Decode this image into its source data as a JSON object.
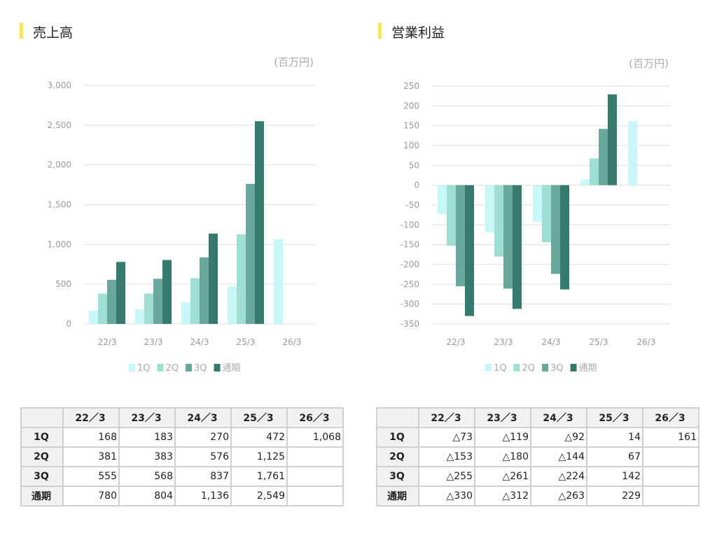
{
  "chart_data": [
    {
      "type": "bar",
      "title": "売上高",
      "unit": "(百万円)",
      "categories": [
        "22/3",
        "23/3",
        "24/3",
        "25/3",
        "26/3"
      ],
      "series": [
        {
          "name": "1Q",
          "color": "#c8f7fa",
          "values": [
            168,
            183,
            270,
            472,
            1068
          ]
        },
        {
          "name": "2Q",
          "color": "#9fded2",
          "values": [
            381,
            383,
            576,
            1125,
            null
          ]
        },
        {
          "name": "3Q",
          "color": "#68a89c",
          "values": [
            555,
            568,
            837,
            1761,
            null
          ]
        },
        {
          "name": "通期",
          "color": "#357a6d",
          "values": [
            780,
            804,
            1136,
            2549,
            null
          ]
        }
      ],
      "ylim": [
        0,
        3000
      ],
      "yticks": [
        0,
        500,
        1000,
        1500,
        2000,
        2500,
        3000
      ],
      "ytick_labels": [
        "0",
        "500",
        "1,000",
        "1,500",
        "2,000",
        "2,500",
        "3,000"
      ],
      "legend": "bottom",
      "grid": true
    },
    {
      "type": "bar",
      "title": "営業利益",
      "unit": "(百万円)",
      "categories": [
        "22/3",
        "23/3",
        "24/3",
        "25/3",
        "26/3"
      ],
      "series": [
        {
          "name": "1Q",
          "color": "#c8f7fa",
          "values": [
            -73,
            -119,
            -92,
            14,
            161
          ]
        },
        {
          "name": "2Q",
          "color": "#9fded2",
          "values": [
            -153,
            -180,
            -144,
            67,
            null
          ]
        },
        {
          "name": "3Q",
          "color": "#68a89c",
          "values": [
            -255,
            -261,
            -224,
            142,
            null
          ]
        },
        {
          "name": "通期",
          "color": "#357a6d",
          "values": [
            -330,
            -312,
            -263,
            229,
            null
          ]
        }
      ],
      "ylim": [
        -350,
        250
      ],
      "yticks": [
        -350,
        -300,
        -250,
        -200,
        -150,
        -100,
        -50,
        0,
        50,
        100,
        150,
        200,
        250
      ],
      "ytick_labels": [
        "-350",
        "-300",
        "-250",
        "-200",
        "-150",
        "-100",
        "-50",
        "0",
        "50",
        "100",
        "150",
        "200",
        "250"
      ],
      "legend": "bottom",
      "grid": true
    }
  ],
  "tables": [
    {
      "columns": [
        "22／3",
        "23／3",
        "24／3",
        "25／3",
        "26／3"
      ],
      "rows": [
        {
          "label": "1Q",
          "cells": [
            "168",
            "183",
            "270",
            "472",
            "1,068"
          ]
        },
        {
          "label": "2Q",
          "cells": [
            "381",
            "383",
            "576",
            "1,125",
            ""
          ]
        },
        {
          "label": "3Q",
          "cells": [
            "555",
            "568",
            "837",
            "1,761",
            ""
          ]
        },
        {
          "label": "通期",
          "cells": [
            "780",
            "804",
            "1,136",
            "2,549",
            ""
          ]
        }
      ]
    },
    {
      "columns": [
        "22／3",
        "23／3",
        "24／3",
        "25／3",
        "26／3"
      ],
      "rows": [
        {
          "label": "1Q",
          "cells": [
            "△73",
            "△119",
            "△92",
            "14",
            "161"
          ]
        },
        {
          "label": "2Q",
          "cells": [
            "△153",
            "△180",
            "△144",
            "67",
            ""
          ]
        },
        {
          "label": "3Q",
          "cells": [
            "△255",
            "△261",
            "△224",
            "142",
            ""
          ]
        },
        {
          "label": "通期",
          "cells": [
            "△330",
            "△312",
            "△263",
            "229",
            ""
          ]
        }
      ]
    }
  ]
}
